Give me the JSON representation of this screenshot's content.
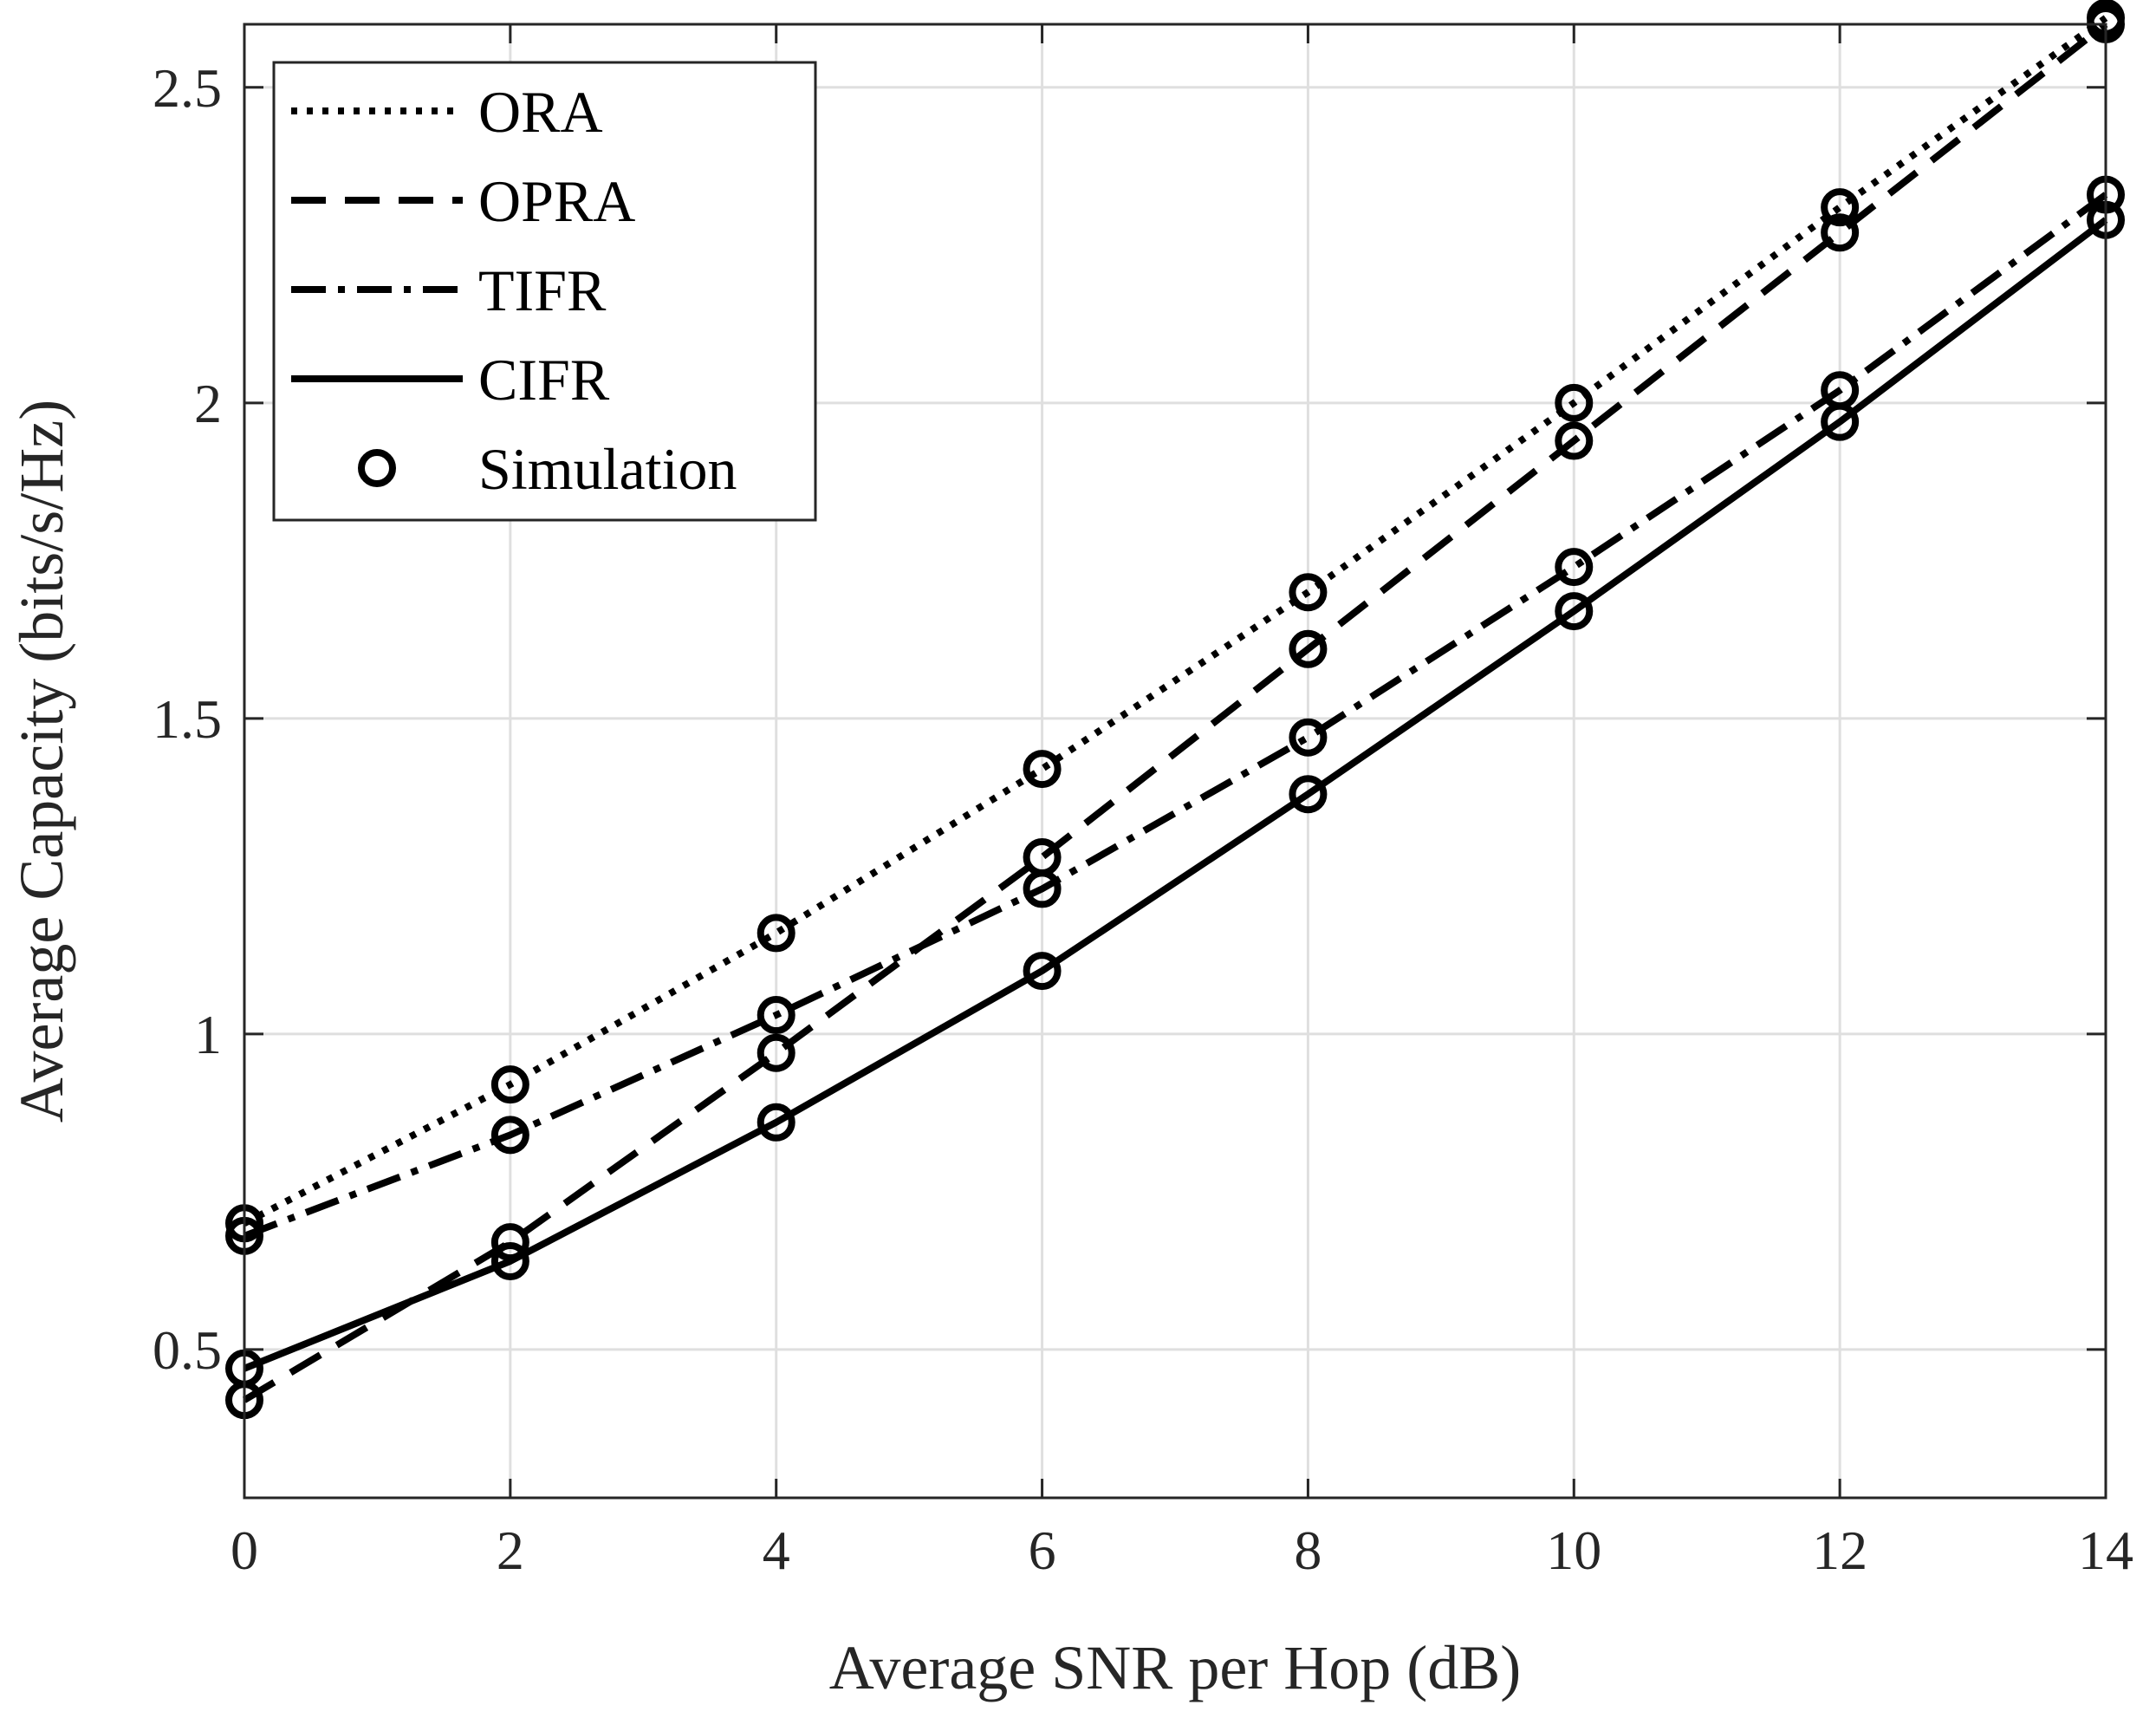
{
  "chart_data": {
    "type": "line",
    "xlabel": "Average SNR per Hop (dB)",
    "ylabel": "Average Capacity (bits/s/Hz)",
    "xlim": [
      0,
      14
    ],
    "ylim": [
      0.265,
      2.6
    ],
    "xticks": [
      0,
      2,
      4,
      6,
      8,
      10,
      12,
      14
    ],
    "xtick_labels": [
      "0",
      "2",
      "4",
      "6",
      "8",
      "10",
      "12",
      "14"
    ],
    "yticks": [
      0.5,
      1,
      1.5,
      2,
      2.5
    ],
    "ytick_labels": [
      "0.5",
      "1",
      "1.5",
      "2",
      "2.5"
    ],
    "grid": true,
    "legend_position": "top-left",
    "x": [
      0,
      2,
      4,
      6,
      8,
      10,
      12,
      14
    ],
    "series": [
      {
        "name": "ORA",
        "linestyle": "dotted",
        "values": [
          0.7,
          0.92,
          1.16,
          1.42,
          1.7,
          2.0,
          2.31,
          2.61
        ]
      },
      {
        "name": "OPRA",
        "linestyle": "dashed",
        "values": [
          0.42,
          0.67,
          0.97,
          1.28,
          1.61,
          1.94,
          2.27,
          2.6
        ]
      },
      {
        "name": "TIFR",
        "linestyle": "dashdot",
        "values": [
          0.68,
          0.84,
          1.03,
          1.23,
          1.47,
          1.74,
          2.02,
          2.33
        ]
      },
      {
        "name": "CIFR",
        "linestyle": "solid",
        "values": [
          0.47,
          0.64,
          0.86,
          1.1,
          1.38,
          1.67,
          1.97,
          2.29
        ]
      }
    ],
    "simulation": {
      "name": "Simulation",
      "marker": "circle"
    }
  }
}
